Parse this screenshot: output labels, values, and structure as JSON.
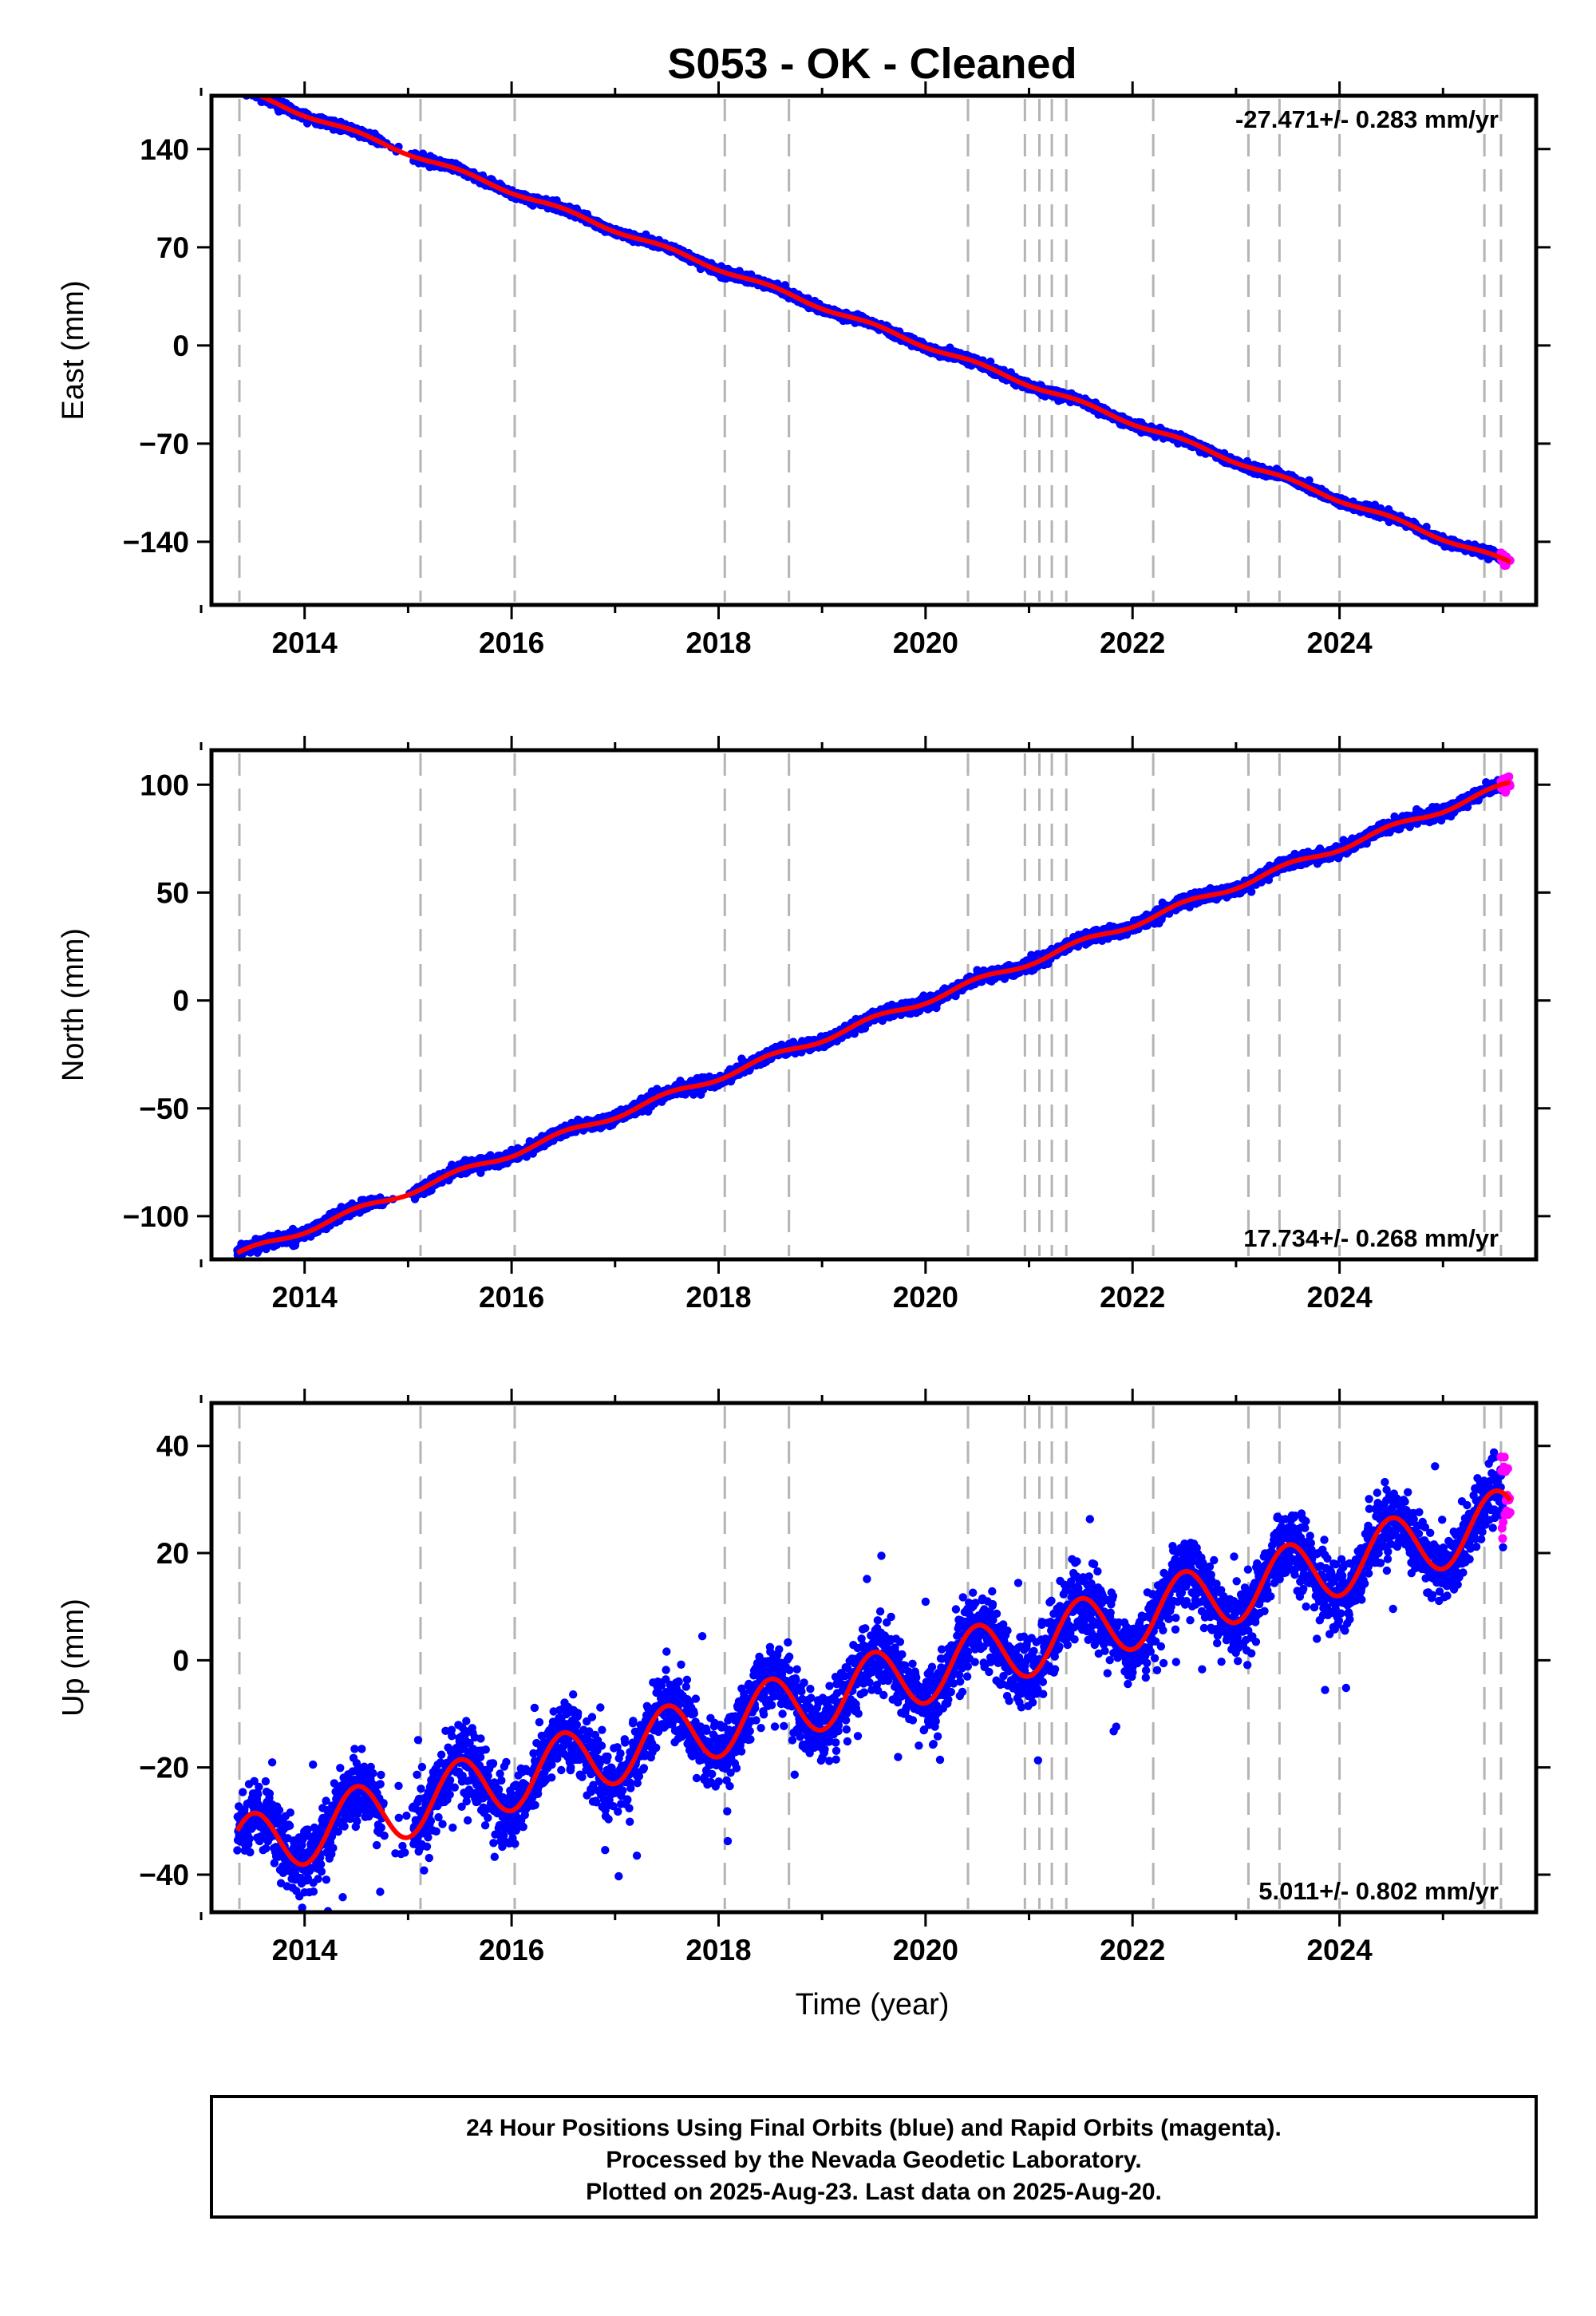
{
  "chart_data": {
    "type": "scatter",
    "title": "S053  - OK - Cleaned",
    "xlabel": "Time (year)",
    "x_range": [
      2013.1,
      2025.9
    ],
    "x_ticks": [
      2014,
      2016,
      2018,
      2020,
      2022,
      2024
    ],
    "x_tick_labels": [
      "2014",
      "2016",
      "2018",
      "2020",
      "2022",
      "2024"
    ],
    "grid": false,
    "colors": {
      "final": "#0000ff",
      "rapid": "#ff00ff",
      "model": "#ff0000",
      "event_lines": "#b4b4b4"
    },
    "event_lines": [
      2013.37,
      2015.12,
      2016.03,
      2018.06,
      2018.68,
      2020.41,
      2020.96,
      2021.1,
      2021.22,
      2021.36,
      2022.2,
      2023.12,
      2023.42,
      2024.0,
      2025.4,
      2025.56
    ],
    "panels": [
      {
        "key": "east",
        "ylabel": "East (mm)",
        "ylim": [
          -185,
          178
        ],
        "y_ticks": [
          140,
          70,
          0,
          -70,
          -140
        ],
        "y_tick_labels": [
          "140",
          "70",
          "0",
          "−70",
          "−140"
        ],
        "rate_text": "-27.471+/- 0.283 mm/yr",
        "rate_position": "top-right",
        "trend": {
          "t0": 2020.0,
          "y0": 0.0,
          "rate": -27.471,
          "seasonal_amp": 1.5,
          "noise": 1.4
        },
        "data_start": 2013.35,
        "data_end": 2025.58,
        "rapid_start": 2025.56,
        "rapid_end": 2025.65
      },
      {
        "key": "north",
        "ylabel": "North (mm)",
        "ylim": [
          -120,
          116
        ],
        "y_ticks": [
          100,
          50,
          0,
          -50,
          -100
        ],
        "y_tick_labels": [
          "100",
          "50",
          "0",
          "−50",
          "−100"
        ],
        "rate_text": "17.734+/- 0.268 mm/yr",
        "rate_position": "bottom-right",
        "trend": {
          "t0": 2020.0,
          "y0": 0.0,
          "rate": 17.734,
          "seasonal_amp": 1.5,
          "noise": 1.3
        },
        "data_start": 2013.35,
        "data_end": 2025.58,
        "rapid_start": 2025.56,
        "rapid_end": 2025.65
      },
      {
        "key": "up",
        "ylabel": "Up (mm)",
        "ylim": [
          -47,
          48
        ],
        "y_ticks": [
          40,
          20,
          0,
          -20,
          -40
        ],
        "y_tick_labels": [
          "40",
          "20",
          "0",
          "−20",
          "−40"
        ],
        "rate_text": "5.011+/- 0.802 mm/yr",
        "rate_position": "bottom-right",
        "trend": {
          "t0": 2020.0,
          "y0": -2.0,
          "rate": 5.011,
          "seasonal_amp": 6.0,
          "noise": 3.2
        },
        "data_start": 2013.35,
        "data_end": 2025.58,
        "rapid_start": 2025.56,
        "rapid_end": 2025.65
      }
    ]
  },
  "footer": {
    "lines": [
      "24 Hour Positions Using Final Orbits (blue) and Rapid Orbits (magenta).",
      "Processed by the Nevada Geodetic Laboratory.",
      "Plotted on 2025-Aug-23. Last data on 2025-Aug-20."
    ]
  }
}
